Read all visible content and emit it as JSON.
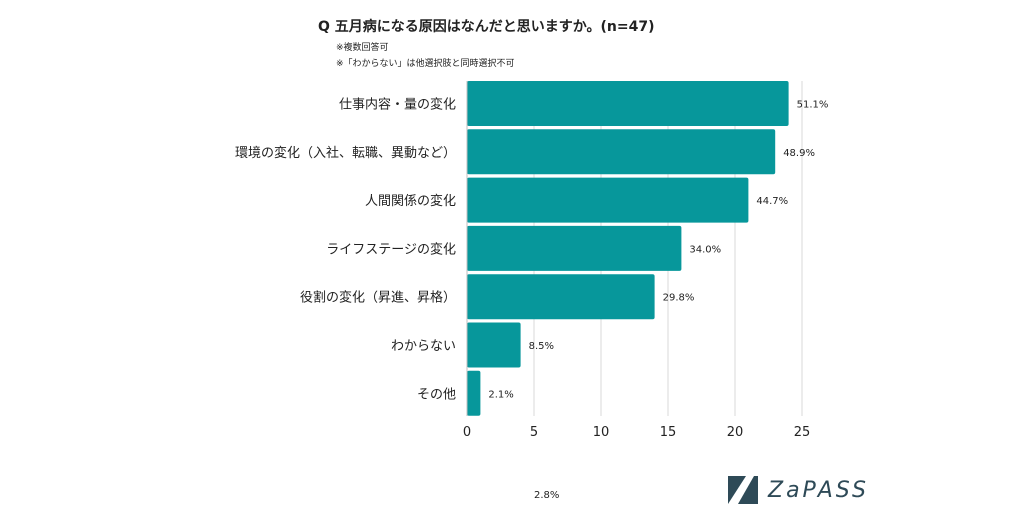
{
  "header": {
    "title": "Q 五月病になる原因はなんだと思いますか。(n=47)",
    "note1": "※複数回答可",
    "note2": "※「わからない」は他選択肢と同時選択不可"
  },
  "chart_data": {
    "type": "bar",
    "orientation": "horizontal",
    "categories": [
      "仕事内容・量の変化",
      "環境の変化（入社、転職、異動など）",
      "人間関係の変化",
      "ライフステージの変化",
      "役割の変化（昇進、昇格）",
      "わからない",
      "その他"
    ],
    "values": [
      24,
      23,
      21,
      16,
      14,
      4,
      1
    ],
    "data_labels": [
      "51.1%",
      "48.9%",
      "44.7%",
      "34.0%",
      "29.8%",
      "8.5%",
      "2.1%"
    ],
    "xlim": [
      0,
      25
    ],
    "xticks": [
      0,
      5,
      10,
      15,
      20,
      25
    ],
    "grid": true,
    "bar_color": "#07979b"
  },
  "stray_label": "2.8%",
  "logo": {
    "text": "ZaPASS"
  }
}
